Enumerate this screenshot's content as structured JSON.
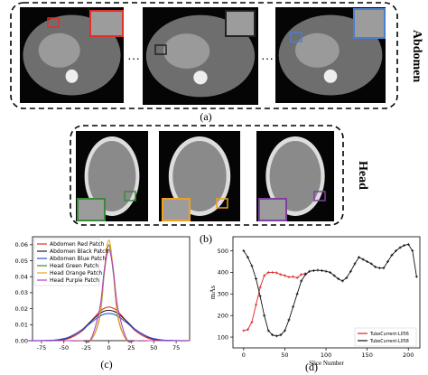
{
  "figure": {
    "panel_a": {
      "label": "(a)",
      "side_label": "Abdomen"
    },
    "panel_b": {
      "label": "(b)",
      "side_label": "Head"
    }
  },
  "chart_data": [
    {
      "type": "line",
      "caption": "(c)",
      "x": [
        -90,
        -75,
        -60,
        -45,
        -30,
        -20,
        -10,
        -5,
        0,
        5,
        10,
        20,
        30,
        45,
        60,
        75,
        90
      ],
      "series": [
        {
          "name": "Abdomen Red Patch",
          "color": "#e0302a",
          "values": [
            0,
            0,
            0.0001,
            0.0013,
            0.006,
            0.0121,
            0.0183,
            0.0203,
            0.021,
            0.0203,
            0.0183,
            0.0121,
            0.006,
            0.0013,
            0.0001,
            0,
            0
          ]
        },
        {
          "name": "Abdomen Black Patch",
          "color": "#222222",
          "values": [
            0,
            0,
            0.0003,
            0.0019,
            0.0068,
            0.0121,
            0.017,
            0.0185,
            0.019,
            0.0185,
            0.017,
            0.0121,
            0.0068,
            0.0019,
            0.0003,
            0,
            0
          ]
        },
        {
          "name": "Abdomen Blue Patch",
          "color": "#2c4fd6",
          "values": [
            0,
            0.0001,
            0.0004,
            0.0021,
            0.0067,
            0.0112,
            0.0153,
            0.0166,
            0.017,
            0.0166,
            0.0153,
            0.0112,
            0.0067,
            0.0021,
            0.0004,
            0.0001,
            0
          ]
        },
        {
          "name": "Head Green Patch",
          "color": "#3a8a3a",
          "values": [
            0,
            0,
            0,
            0,
            0,
            0.0002,
            0.0149,
            0.0424,
            0.06,
            0.0424,
            0.0149,
            0.0002,
            0,
            0,
            0,
            0,
            0
          ]
        },
        {
          "name": "Head Orange Patch",
          "color": "#f0a020",
          "values": [
            0,
            0,
            0,
            0,
            0,
            0.0003,
            0.0157,
            0.0445,
            0.063,
            0.0445,
            0.0157,
            0.0003,
            0,
            0,
            0,
            0,
            0
          ]
        },
        {
          "name": "Head Purple Patch",
          "color": "#b040c0",
          "values": [
            0,
            0,
            0,
            0,
            0,
            0.001,
            0.0205,
            0.0442,
            0.057,
            0.0442,
            0.0205,
            0.001,
            0,
            0,
            0,
            0,
            0
          ]
        }
      ],
      "xlim": [
        -85,
        90
      ],
      "ylim": [
        0,
        0.065
      ],
      "xticks": [
        -75,
        -50,
        -25,
        0,
        25,
        50,
        75
      ],
      "yticks": [
        {
          "value": 0,
          "label": "0.00"
        },
        {
          "value": 0.01,
          "label": "0.01"
        },
        {
          "value": 0.02,
          "label": "0.02"
        },
        {
          "value": 0.03,
          "label": "0.03"
        },
        {
          "value": 0.04,
          "label": "0.04"
        },
        {
          "value": 0.05,
          "label": "0.05"
        },
        {
          "value": 0.06,
          "label": "0.06"
        }
      ],
      "legend": "upper left",
      "markers": false
    },
    {
      "type": "line",
      "caption": "(d)",
      "x_label": "Slice Number",
      "y_label": "mAs",
      "series": [
        {
          "name": "TubeCurrent-L056",
          "color": "#e02020",
          "x": [
            0,
            5,
            10,
            15,
            20,
            25,
            30,
            35,
            40,
            45,
            50,
            55,
            60,
            65,
            70,
            75
          ],
          "values": [
            130,
            135,
            170,
            250,
            330,
            385,
            400,
            400,
            398,
            390,
            385,
            378,
            380,
            375,
            390,
            395
          ]
        },
        {
          "name": "TubeCurrent-L058",
          "color": "#111111",
          "x": [
            0,
            5,
            10,
            15,
            20,
            25,
            30,
            35,
            40,
            45,
            50,
            55,
            60,
            65,
            70,
            75,
            80,
            85,
            90,
            95,
            100,
            105,
            110,
            115,
            120,
            125,
            130,
            135,
            140,
            145,
            150,
            155,
            160,
            165,
            170,
            175,
            180,
            185,
            190,
            195,
            200,
            205,
            210
          ],
          "values": [
            500,
            470,
            430,
            370,
            290,
            200,
            130,
            110,
            105,
            110,
            130,
            180,
            240,
            300,
            360,
            390,
            405,
            408,
            410,
            408,
            405,
            400,
            385,
            370,
            360,
            375,
            405,
            440,
            470,
            460,
            450,
            440,
            425,
            420,
            420,
            450,
            480,
            500,
            515,
            525,
            530,
            500,
            380
          ]
        }
      ],
      "xlim": [
        -13,
        214
      ],
      "ylim": [
        50,
        565
      ],
      "xticks": [
        0,
        50,
        100,
        150,
        200
      ],
      "yticks": [
        100,
        200,
        300,
        400,
        500
      ],
      "legend": "lower right",
      "markers": true
    }
  ]
}
